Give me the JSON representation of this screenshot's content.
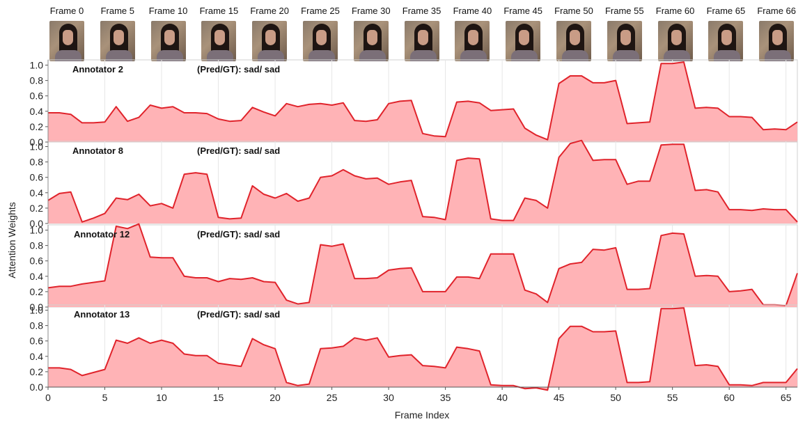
{
  "frames": [
    {
      "label": "Frame 0",
      "index": 0
    },
    {
      "label": "Frame 5",
      "index": 5
    },
    {
      "label": "Frame 10",
      "index": 10
    },
    {
      "label": "Frame 15",
      "index": 15
    },
    {
      "label": "Frame 20",
      "index": 20
    },
    {
      "label": "Frame 25",
      "index": 25
    },
    {
      "label": "Frame 30",
      "index": 30
    },
    {
      "label": "Frame 35",
      "index": 35
    },
    {
      "label": "Frame 40",
      "index": 40
    },
    {
      "label": "Frame 45",
      "index": 45
    },
    {
      "label": "Frame 50",
      "index": 50
    },
    {
      "label": "Frame 55",
      "index": 55
    },
    {
      "label": "Frame 60",
      "index": 60
    },
    {
      "label": "Frame 65",
      "index": 65
    },
    {
      "label": "Frame 66",
      "index": 66
    }
  ],
  "colors": {
    "line": "#e0232b",
    "fill": "#ffb3b6",
    "grid": "#e6e6e6"
  },
  "chart_data": {
    "type": "area",
    "xlabel": "Frame Index",
    "ylabel": "Attention Weights",
    "xlim": [
      0,
      66
    ],
    "ylim": [
      0,
      1.05
    ],
    "xticks": [
      0,
      5,
      10,
      15,
      20,
      25,
      30,
      35,
      40,
      45,
      50,
      55,
      60,
      65
    ],
    "yticks": [
      0.0,
      0.2,
      0.4,
      0.6,
      0.8,
      1.0
    ],
    "grid": "vertical",
    "x": [
      0,
      1,
      2,
      3,
      4,
      5,
      6,
      7,
      8,
      9,
      10,
      11,
      12,
      13,
      14,
      15,
      16,
      17,
      18,
      19,
      20,
      21,
      22,
      23,
      24,
      25,
      26,
      27,
      28,
      29,
      30,
      31,
      32,
      33,
      34,
      35,
      36,
      37,
      38,
      39,
      40,
      41,
      42,
      43,
      44,
      45,
      46,
      47,
      48,
      49,
      50,
      51,
      52,
      53,
      54,
      55,
      56,
      57,
      58,
      59,
      60,
      61,
      62,
      63,
      64,
      65,
      66
    ],
    "series": [
      {
        "name": "Annotator 2",
        "annotation": "(Pred/GT): sad/ sad",
        "values": [
          0.38,
          0.38,
          0.36,
          0.25,
          0.25,
          0.26,
          0.46,
          0.27,
          0.32,
          0.48,
          0.44,
          0.46,
          0.38,
          0.38,
          0.37,
          0.3,
          0.27,
          0.28,
          0.45,
          0.39,
          0.34,
          0.5,
          0.46,
          0.49,
          0.5,
          0.48,
          0.51,
          0.28,
          0.27,
          0.29,
          0.5,
          0.53,
          0.54,
          0.11,
          0.08,
          0.07,
          0.52,
          0.53,
          0.51,
          0.41,
          0.42,
          0.43,
          0.18,
          0.09,
          0.03,
          0.76,
          0.86,
          0.86,
          0.77,
          0.77,
          0.8,
          0.24,
          0.25,
          0.26,
          1.02,
          1.02,
          1.04,
          0.44,
          0.45,
          0.44,
          0.33,
          0.33,
          0.32,
          0.16,
          0.17,
          0.16,
          0.26
        ]
      },
      {
        "name": "Annotator 8",
        "annotation": "(Pred/GT): sad/ sad",
        "values": [
          0.3,
          0.39,
          0.41,
          0.02,
          0.07,
          0.13,
          0.33,
          0.31,
          0.38,
          0.23,
          0.26,
          0.2,
          0.64,
          0.66,
          0.64,
          0.08,
          0.06,
          0.07,
          0.49,
          0.38,
          0.33,
          0.39,
          0.29,
          0.33,
          0.6,
          0.62,
          0.7,
          0.62,
          0.58,
          0.59,
          0.51,
          0.54,
          0.56,
          0.09,
          0.08,
          0.05,
          0.82,
          0.85,
          0.84,
          0.06,
          0.04,
          0.04,
          0.33,
          0.3,
          0.2,
          0.86,
          1.04,
          1.08,
          0.82,
          0.83,
          0.83,
          0.51,
          0.55,
          0.55,
          1.02,
          1.03,
          1.03,
          0.43,
          0.44,
          0.41,
          0.18,
          0.18,
          0.17,
          0.19,
          0.18,
          0.18,
          0.02
        ]
      },
      {
        "name": "Annotator 12",
        "annotation": "(Pred/GT): sad/ sad",
        "values": [
          0.25,
          0.27,
          0.27,
          0.3,
          0.32,
          0.34,
          1.05,
          1.02,
          1.08,
          0.65,
          0.64,
          0.64,
          0.4,
          0.38,
          0.38,
          0.33,
          0.37,
          0.36,
          0.38,
          0.33,
          0.32,
          0.09,
          0.04,
          0.06,
          0.81,
          0.79,
          0.82,
          0.37,
          0.37,
          0.38,
          0.48,
          0.5,
          0.51,
          0.2,
          0.2,
          0.2,
          0.39,
          0.39,
          0.37,
          0.69,
          0.69,
          0.69,
          0.22,
          0.17,
          0.06,
          0.5,
          0.56,
          0.58,
          0.75,
          0.74,
          0.77,
          0.23,
          0.23,
          0.24,
          0.93,
          0.96,
          0.95,
          0.4,
          0.41,
          0.4,
          0.2,
          0.21,
          0.23,
          0.03,
          0.03,
          0.02,
          0.44
        ]
      },
      {
        "name": "Annotator 13",
        "annotation": "(Pred/GT): sad/ sad",
        "values": [
          0.25,
          0.25,
          0.23,
          0.15,
          0.19,
          0.23,
          0.61,
          0.57,
          0.64,
          0.57,
          0.61,
          0.57,
          0.43,
          0.41,
          0.41,
          0.31,
          0.29,
          0.27,
          0.63,
          0.55,
          0.5,
          0.06,
          0.02,
          0.04,
          0.5,
          0.51,
          0.53,
          0.64,
          0.61,
          0.64,
          0.39,
          0.41,
          0.42,
          0.28,
          0.27,
          0.25,
          0.52,
          0.5,
          0.47,
          0.03,
          0.02,
          0.02,
          -0.02,
          -0.01,
          -0.04,
          0.63,
          0.79,
          0.79,
          0.72,
          0.72,
          0.73,
          0.06,
          0.06,
          0.07,
          1.02,
          1.02,
          1.03,
          0.28,
          0.29,
          0.27,
          0.03,
          0.03,
          0.02,
          0.06,
          0.06,
          0.06,
          0.24
        ]
      }
    ]
  }
}
